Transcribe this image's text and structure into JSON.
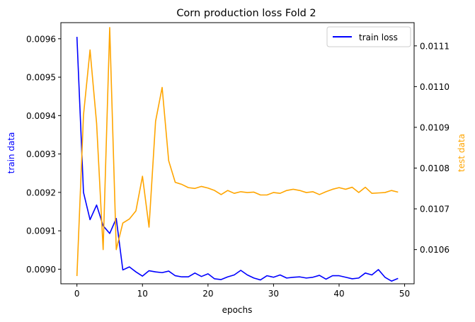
{
  "chart_data": {
    "type": "line",
    "title": "Corn production loss Fold 2",
    "xlabel": "epochs",
    "ylabel_left": "train data",
    "ylabel_right": "test data",
    "xlim": [
      -2.45,
      51.45
    ],
    "ylim_left": [
      0.008962,
      0.009642
    ],
    "ylim_right": [
      0.010516,
      0.011157
    ],
    "x_ticks": [
      0,
      10,
      20,
      30,
      40,
      50
    ],
    "x_tick_labels": [
      "0",
      "10",
      "20",
      "30",
      "40",
      "50"
    ],
    "y_left_ticks": [
      0.009,
      0.0091,
      0.0092,
      0.0093,
      0.0094,
      0.0095,
      0.0096
    ],
    "y_left_tick_labels": [
      "0.0090",
      "0.0091",
      "0.0092",
      "0.0093",
      "0.0094",
      "0.0095",
      "0.0096"
    ],
    "y_right_ticks": [
      0.0106,
      0.0107,
      0.0108,
      0.0109,
      0.011,
      0.0111
    ],
    "y_right_tick_labels": [
      "0.0106",
      "0.0107",
      "0.0108",
      "0.0109",
      "0.0110",
      "0.0111"
    ],
    "grid": false,
    "legend_position": "top-right",
    "legend": [
      "train loss"
    ],
    "series": [
      {
        "name": "train loss",
        "axis": "left",
        "color": "#0000ff",
        "x": [
          0,
          1,
          2,
          3,
          4,
          5,
          6,
          7,
          8,
          9,
          10,
          11,
          12,
          13,
          14,
          15,
          16,
          17,
          18,
          19,
          20,
          21,
          22,
          23,
          24,
          25,
          26,
          27,
          28,
          29,
          30,
          31,
          32,
          33,
          34,
          35,
          36,
          37,
          38,
          39,
          40,
          41,
          42,
          43,
          44,
          45,
          46,
          47,
          48,
          49
        ],
        "values": [
          0.009605,
          0.0092,
          0.009129,
          0.009167,
          0.009113,
          0.009093,
          0.009132,
          0.008998,
          0.009006,
          0.008993,
          0.008982,
          0.008996,
          0.008993,
          0.008991,
          0.008995,
          0.008983,
          0.00898,
          0.00898,
          0.00899,
          0.008981,
          0.008988,
          0.008975,
          0.008973,
          0.00898,
          0.008985,
          0.008997,
          0.008985,
          0.008977,
          0.008972,
          0.008983,
          0.008979,
          0.008985,
          0.008977,
          0.008979,
          0.00898,
          0.008977,
          0.008979,
          0.008984,
          0.008974,
          0.008983,
          0.008983,
          0.008979,
          0.008975,
          0.008977,
          0.00899,
          0.008985,
          0.008999,
          0.008979,
          0.008969,
          0.008976
        ]
      },
      {
        "name": "",
        "axis": "right",
        "color": "#ffa500",
        "x": [
          0,
          1,
          2,
          3,
          4,
          5,
          6,
          7,
          8,
          9,
          10,
          11,
          12,
          13,
          14,
          15,
          16,
          17,
          18,
          19,
          20,
          21,
          22,
          23,
          24,
          25,
          26,
          27,
          28,
          29,
          30,
          31,
          32,
          33,
          34,
          35,
          36,
          37,
          38,
          39,
          40,
          41,
          42,
          43,
          44,
          45,
          46,
          47,
          48,
          49
        ],
        "values": [
          0.010535,
          0.01093,
          0.01109,
          0.01091,
          0.0106,
          0.011145,
          0.0106,
          0.010665,
          0.010675,
          0.010695,
          0.01078,
          0.010655,
          0.010915,
          0.010998,
          0.010818,
          0.010765,
          0.01076,
          0.010752,
          0.01075,
          0.010755,
          0.010751,
          0.010745,
          0.010735,
          0.010745,
          0.010738,
          0.010742,
          0.01074,
          0.010741,
          0.010734,
          0.010734,
          0.01074,
          0.010738,
          0.010745,
          0.010748,
          0.010745,
          0.01074,
          0.010742,
          0.010735,
          0.010742,
          0.010748,
          0.010752,
          0.010748,
          0.010753,
          0.01074,
          0.010753,
          0.010738,
          0.010739,
          0.01074,
          0.010745,
          0.010741
        ]
      }
    ]
  }
}
